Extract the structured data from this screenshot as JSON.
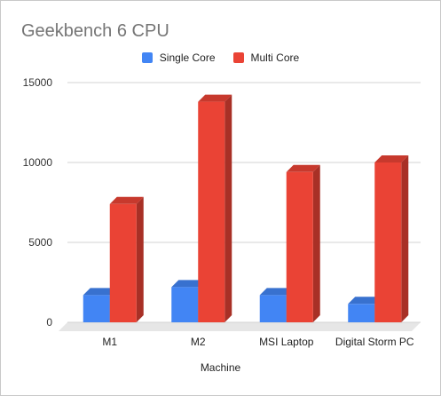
{
  "chart_data": {
    "type": "bar",
    "title": "Geekbench 6 CPU",
    "xlabel": "Machine",
    "ylabel": "",
    "categories": [
      "M1",
      "M2",
      "MSI Laptop",
      "Digital Storm PC"
    ],
    "series": [
      {
        "name": "Single Core",
        "color": "#4285f4",
        "values": [
          1700,
          2200,
          1700,
          1150
        ]
      },
      {
        "name": "Multi Core",
        "color": "#ea4335",
        "values": [
          7400,
          13800,
          9400,
          10000
        ]
      }
    ],
    "ylim": [
      0,
      15000
    ],
    "yticks": [
      0,
      5000,
      10000,
      15000
    ],
    "grid": true,
    "legend_position": "top",
    "style": "3d"
  }
}
